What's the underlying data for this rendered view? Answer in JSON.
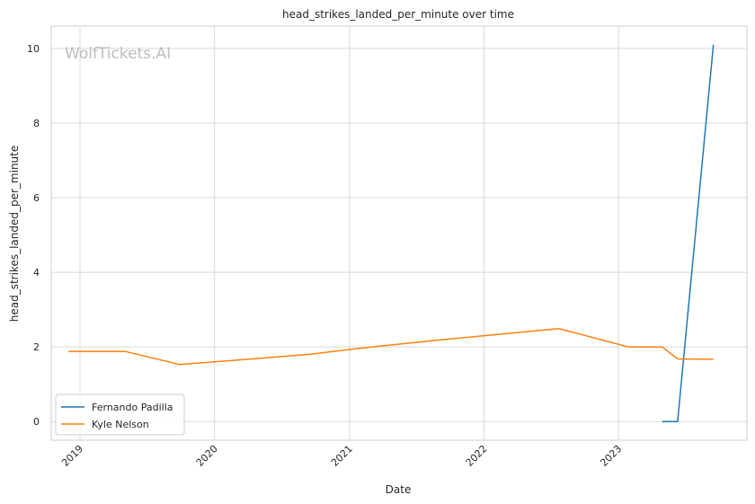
{
  "chart_data": {
    "type": "line",
    "title": "head_strikes_landed_per_minute over time",
    "xlabel": "Date",
    "ylabel": "head_strikes_landed_per_minute",
    "watermark": "WolfTickets.AI",
    "x_ticks": [
      "2019",
      "2020",
      "2021",
      "2022",
      "2023"
    ],
    "y_ticks": [
      "0",
      "2",
      "4",
      "6",
      "8",
      "10"
    ],
    "xlim": [
      "2018-10-15",
      "2023-12-15"
    ],
    "ylim": [
      -0.5,
      10.6
    ],
    "grid": true,
    "legend_position": "lower-left",
    "colors": {
      "Fernando Padilla": "#1f77b4",
      "Kyle Nelson": "#ff7f0e"
    },
    "series": [
      {
        "name": "Fernando Padilla",
        "points": [
          {
            "x": "2023-04-29",
            "y": 0.0
          },
          {
            "x": "2023-06-10",
            "y": 0.0
          },
          {
            "x": "2023-09-15",
            "y": 10.1
          }
        ]
      },
      {
        "name": "Kyle Nelson",
        "points": [
          {
            "x": "2018-12-01",
            "y": 1.88
          },
          {
            "x": "2019-05-04",
            "y": 1.88
          },
          {
            "x": "2019-09-28",
            "y": 1.53
          },
          {
            "x": "2020-01-01",
            "y": 1.6
          },
          {
            "x": "2020-09-12",
            "y": 1.8
          },
          {
            "x": "2021-03-01",
            "y": 2.0
          },
          {
            "x": "2021-09-15",
            "y": 2.2
          },
          {
            "x": "2022-07-23",
            "y": 2.49
          },
          {
            "x": "2023-01-28",
            "y": 2.0
          },
          {
            "x": "2023-04-29",
            "y": 2.0
          },
          {
            "x": "2023-06-10",
            "y": 1.68
          },
          {
            "x": "2023-09-15",
            "y": 1.67
          }
        ]
      }
    ]
  }
}
